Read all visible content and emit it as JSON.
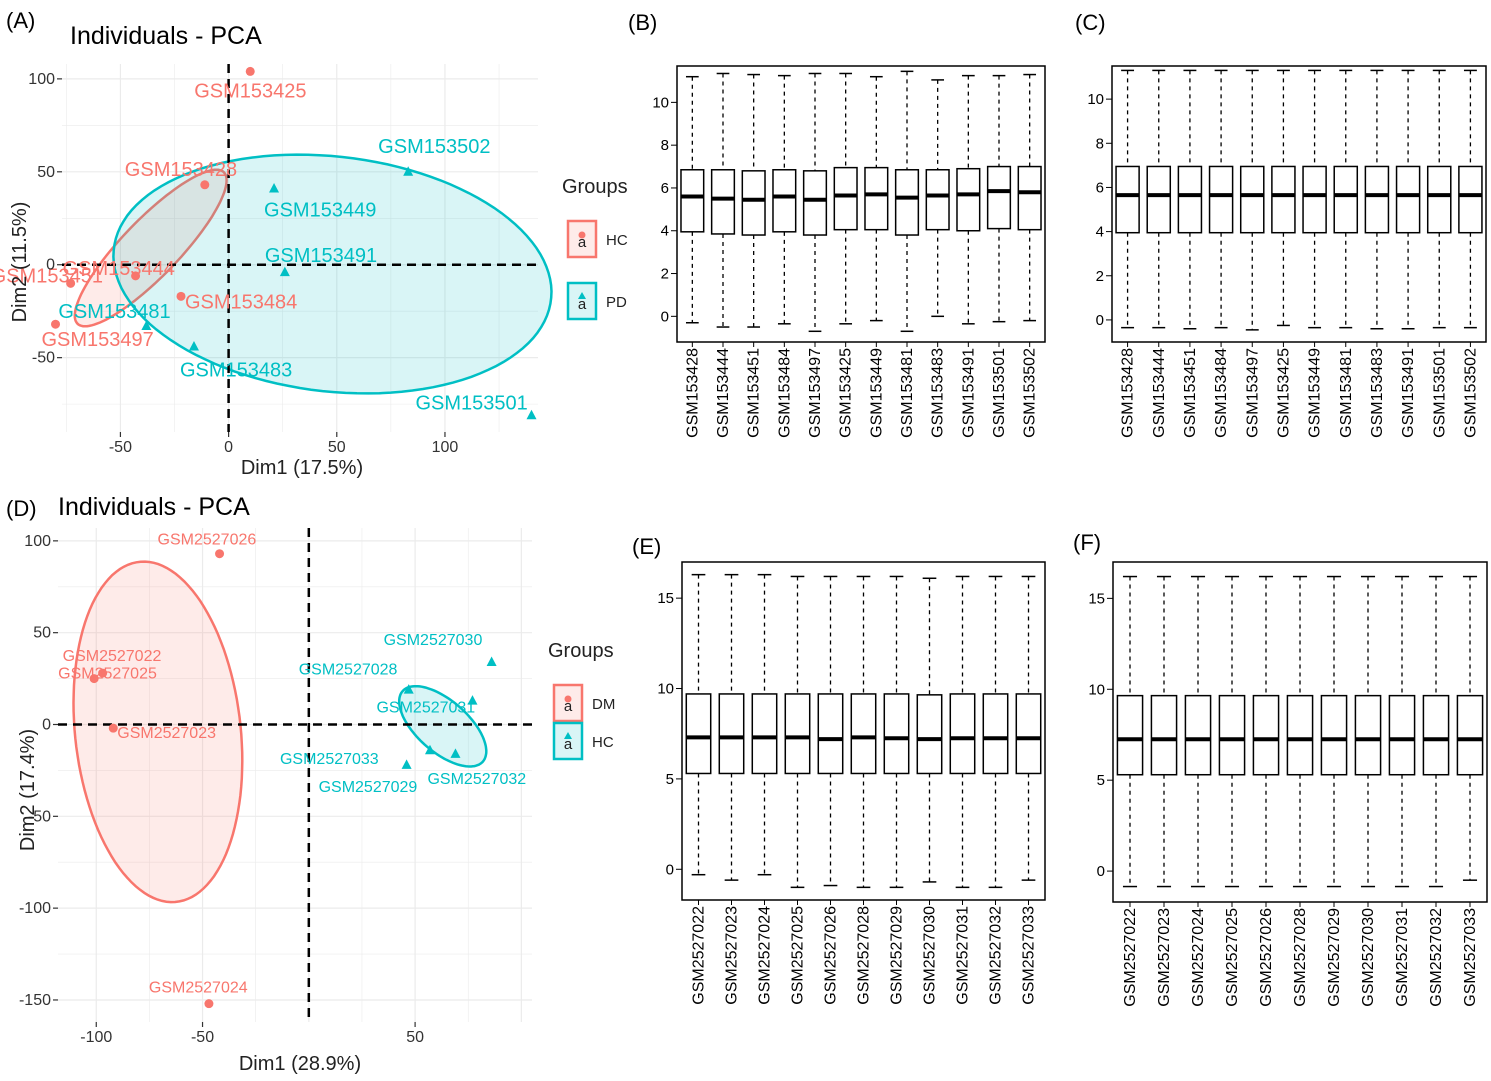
{
  "figure": {
    "labels": [
      "(A)",
      "(B)",
      "(C)",
      "(D)",
      "(E)",
      "(F)"
    ]
  },
  "colors": {
    "group1": "#F8766D",
    "group2": "#00BFC4"
  },
  "chart_data": [
    {
      "id": "A",
      "type": "scatter",
      "title": "Individuals - PCA",
      "xlabel": "Dim1 (17.5%)",
      "ylabel": "Dim2 (11.5%)",
      "xlim": [
        -77,
        143
      ],
      "ylim": [
        -90,
        108
      ],
      "xticks": [
        -50,
        0,
        50,
        100
      ],
      "yticks": [
        -50,
        0,
        50,
        100
      ],
      "grid": true,
      "legend": {
        "title": "Groups",
        "position": "right",
        "entries": [
          "HC",
          "PD"
        ]
      },
      "series": [
        {
          "name": "HC",
          "points": [
            {
              "label": "GSM153425",
              "x": 10,
              "y": 104
            },
            {
              "label": "GSM153428",
              "x": -11,
              "y": 43
            },
            {
              "label": "GSM153444",
              "x": -43,
              "y": -6
            },
            {
              "label": "GSM153451",
              "x": -73,
              "y": -10
            },
            {
              "label": "GSM153484",
              "x": -22,
              "y": -17
            },
            {
              "label": "GSM153497",
              "x": -80,
              "y": -32
            }
          ],
          "ellipse": {
            "cx": -36,
            "cy": 9,
            "rx": 53,
            "ry": 14,
            "angle_deg": 51
          }
        },
        {
          "name": "PD",
          "points": [
            {
              "label": "GSM153502",
              "x": 83,
              "y": 50
            },
            {
              "label": "GSM153449",
              "x": 21,
              "y": 41
            },
            {
              "label": "GSM153491",
              "x": 26,
              "y": -4
            },
            {
              "label": "GSM153481",
              "x": -38,
              "y": -33
            },
            {
              "label": "GSM153483",
              "x": -16,
              "y": -44
            },
            {
              "label": "GSM153501",
              "x": 140,
              "y": -81
            }
          ],
          "ellipse": {
            "cx": 48,
            "cy": -5,
            "rx": 102,
            "ry": 63,
            "angle_deg": -9
          }
        }
      ]
    },
    {
      "id": "B",
      "type": "boxplot",
      "ylim": [
        -1.2,
        11.7
      ],
      "yticks": [
        0,
        2,
        4,
        6,
        8,
        10
      ],
      "categories": [
        "GSM153428",
        "GSM153444",
        "GSM153451",
        "GSM153484",
        "GSM153497",
        "GSM153425",
        "GSM153449",
        "GSM153481",
        "GSM153483",
        "GSM153491",
        "GSM153501",
        "GSM153502"
      ],
      "boxes": [
        {
          "min": -0.3,
          "q1": 3.95,
          "median": 5.6,
          "q3": 6.85,
          "max": 11.2
        },
        {
          "min": -0.5,
          "q1": 3.85,
          "median": 5.5,
          "q3": 6.85,
          "max": 11.35
        },
        {
          "min": -0.5,
          "q1": 3.8,
          "median": 5.45,
          "q3": 6.8,
          "max": 11.3
        },
        {
          "min": -0.35,
          "q1": 3.95,
          "median": 5.6,
          "q3": 6.85,
          "max": 11.25
        },
        {
          "min": -0.7,
          "q1": 3.8,
          "median": 5.45,
          "q3": 6.8,
          "max": 11.35
        },
        {
          "min": -0.35,
          "q1": 4.05,
          "median": 5.65,
          "q3": 6.95,
          "max": 11.35
        },
        {
          "min": -0.2,
          "q1": 4.05,
          "median": 5.7,
          "q3": 6.95,
          "max": 11.2
        },
        {
          "min": -0.7,
          "q1": 3.8,
          "median": 5.55,
          "q3": 6.85,
          "max": 11.45
        },
        {
          "min": 0.0,
          "q1": 4.05,
          "median": 5.65,
          "q3": 6.85,
          "max": 11.05
        },
        {
          "min": -0.35,
          "q1": 4.0,
          "median": 5.7,
          "q3": 6.9,
          "max": 11.25
        },
        {
          "min": -0.25,
          "q1": 4.1,
          "median": 5.85,
          "q3": 7.0,
          "max": 11.25
        },
        {
          "min": -0.2,
          "q1": 4.05,
          "median": 5.8,
          "q3": 7.0,
          "max": 11.3
        }
      ]
    },
    {
      "id": "C",
      "type": "boxplot",
      "ylim": [
        -1.0,
        11.5
      ],
      "yticks": [
        0,
        2,
        4,
        6,
        8,
        10
      ],
      "categories": [
        "GSM153428",
        "GSM153444",
        "GSM153451",
        "GSM153484",
        "GSM153497",
        "GSM153425",
        "GSM153449",
        "GSM153481",
        "GSM153483",
        "GSM153491",
        "GSM153501",
        "GSM153502"
      ],
      "boxes": [
        {
          "min": -0.35,
          "q1": 3.95,
          "median": 5.65,
          "q3": 6.95,
          "max": 11.3
        },
        {
          "min": -0.35,
          "q1": 3.95,
          "median": 5.65,
          "q3": 6.95,
          "max": 11.3
        },
        {
          "min": -0.4,
          "q1": 3.95,
          "median": 5.65,
          "q3": 6.95,
          "max": 11.3
        },
        {
          "min": -0.35,
          "q1": 3.95,
          "median": 5.65,
          "q3": 6.95,
          "max": 11.3
        },
        {
          "min": -0.45,
          "q1": 3.95,
          "median": 5.65,
          "q3": 6.95,
          "max": 11.3
        },
        {
          "min": -0.25,
          "q1": 3.95,
          "median": 5.65,
          "q3": 6.95,
          "max": 11.3
        },
        {
          "min": -0.35,
          "q1": 3.95,
          "median": 5.65,
          "q3": 6.95,
          "max": 11.3
        },
        {
          "min": -0.35,
          "q1": 3.95,
          "median": 5.65,
          "q3": 6.95,
          "max": 11.3
        },
        {
          "min": -0.4,
          "q1": 3.95,
          "median": 5.65,
          "q3": 6.95,
          "max": 11.3
        },
        {
          "min": -0.4,
          "q1": 3.95,
          "median": 5.65,
          "q3": 6.95,
          "max": 11.3
        },
        {
          "min": -0.35,
          "q1": 3.95,
          "median": 5.65,
          "q3": 6.95,
          "max": 11.3
        },
        {
          "min": -0.35,
          "q1": 3.95,
          "median": 5.65,
          "q3": 6.95,
          "max": 11.3
        }
      ]
    },
    {
      "id": "D",
      "type": "scatter",
      "title": "Individuals - PCA",
      "xlabel": "Dim1 (28.9%)",
      "ylabel": "Dim2 (17.4%)",
      "xlim": [
        -118,
        105
      ],
      "ylim": [
        -162,
        107
      ],
      "xticks": [
        -100,
        -50,
        50
      ],
      "yticks": [
        -150,
        -100,
        -50,
        0,
        50,
        100
      ],
      "grid": true,
      "legend": {
        "title": "Groups",
        "position": "right",
        "entries": [
          "DM",
          "HC"
        ]
      },
      "series": [
        {
          "name": "DM",
          "points": [
            {
              "label": "GSM2527026",
              "x": -42,
              "y": 93
            },
            {
              "label": "GSM2527022",
              "x": -97,
              "y": 28
            },
            {
              "label": "GSM2527025",
              "x": -101,
              "y": 25
            },
            {
              "label": "GSM2527023",
              "x": -92,
              "y": -2
            },
            {
              "label": "GSM2527024",
              "x": -47,
              "y": -152
            }
          ],
          "ellipse": {
            "cx": -71,
            "cy": -4,
            "rx": 93,
            "ry": 39,
            "angle_deg": 95
          }
        },
        {
          "name": "HC",
          "points": [
            {
              "label": "GSM2527030",
              "x": 86,
              "y": 34
            },
            {
              "label": "GSM2527028",
              "x": 47,
              "y": 19
            },
            {
              "label": "GSM2527031",
              "x": 77,
              "y": 13
            },
            {
              "label": "GSM2527033",
              "x": 57,
              "y": -14
            },
            {
              "label": "GSM2527032",
              "x": 69,
              "y": -16
            },
            {
              "label": "GSM2527029",
              "x": 46,
              "y": -22
            }
          ],
          "ellipse": {
            "cx": 63,
            "cy": -1,
            "rx": 27,
            "ry": 13,
            "angle_deg": -48
          }
        }
      ]
    },
    {
      "id": "E",
      "type": "boxplot",
      "ylim": [
        -1.7,
        17.0
      ],
      "yticks": [
        0,
        5,
        10,
        15
      ],
      "categories": [
        "GSM2527022",
        "GSM2527023",
        "GSM2527024",
        "GSM2527025",
        "GSM2527026",
        "GSM2527028",
        "GSM2527029",
        "GSM2527030",
        "GSM2527031",
        "GSM2527032",
        "GSM2527033"
      ],
      "boxes": [
        {
          "min": -0.3,
          "q1": 5.3,
          "median": 7.3,
          "q3": 9.7,
          "max": 16.3
        },
        {
          "min": -0.6,
          "q1": 5.3,
          "median": 7.3,
          "q3": 9.7,
          "max": 16.3
        },
        {
          "min": -0.3,
          "q1": 5.3,
          "median": 7.3,
          "q3": 9.7,
          "max": 16.3
        },
        {
          "min": -1.0,
          "q1": 5.3,
          "median": 7.3,
          "q3": 9.7,
          "max": 16.2
        },
        {
          "min": -0.9,
          "q1": 5.3,
          "median": 7.2,
          "q3": 9.7,
          "max": 16.2
        },
        {
          "min": -1.0,
          "q1": 5.3,
          "median": 7.3,
          "q3": 9.7,
          "max": 16.2
        },
        {
          "min": -1.0,
          "q1": 5.3,
          "median": 7.25,
          "q3": 9.7,
          "max": 16.2
        },
        {
          "min": -0.7,
          "q1": 5.3,
          "median": 7.2,
          "q3": 9.65,
          "max": 16.1
        },
        {
          "min": -1.0,
          "q1": 5.3,
          "median": 7.25,
          "q3": 9.7,
          "max": 16.2
        },
        {
          "min": -1.0,
          "q1": 5.3,
          "median": 7.25,
          "q3": 9.7,
          "max": 16.2
        },
        {
          "min": -0.6,
          "q1": 5.3,
          "median": 7.25,
          "q3": 9.7,
          "max": 16.2
        }
      ]
    },
    {
      "id": "F",
      "type": "boxplot",
      "ylim": [
        -1.7,
        17.0
      ],
      "yticks": [
        0,
        5,
        10,
        15
      ],
      "categories": [
        "GSM2527022",
        "GSM2527023",
        "GSM2527024",
        "GSM2527025",
        "GSM2527026",
        "GSM2527028",
        "GSM2527029",
        "GSM2527030",
        "GSM2527031",
        "GSM2527032",
        "GSM2527033"
      ],
      "boxes": [
        {
          "min": -0.85,
          "q1": 5.3,
          "median": 7.25,
          "q3": 9.65,
          "max": 16.2
        },
        {
          "min": -0.85,
          "q1": 5.3,
          "median": 7.25,
          "q3": 9.65,
          "max": 16.2
        },
        {
          "min": -0.85,
          "q1": 5.3,
          "median": 7.25,
          "q3": 9.65,
          "max": 16.2
        },
        {
          "min": -0.85,
          "q1": 5.3,
          "median": 7.25,
          "q3": 9.65,
          "max": 16.2
        },
        {
          "min": -0.85,
          "q1": 5.3,
          "median": 7.25,
          "q3": 9.65,
          "max": 16.2
        },
        {
          "min": -0.85,
          "q1": 5.3,
          "median": 7.25,
          "q3": 9.65,
          "max": 16.2
        },
        {
          "min": -0.85,
          "q1": 5.3,
          "median": 7.25,
          "q3": 9.65,
          "max": 16.2
        },
        {
          "min": -0.85,
          "q1": 5.3,
          "median": 7.25,
          "q3": 9.65,
          "max": 16.2
        },
        {
          "min": -0.85,
          "q1": 5.3,
          "median": 7.25,
          "q3": 9.65,
          "max": 16.2
        },
        {
          "min": -0.85,
          "q1": 5.3,
          "median": 7.25,
          "q3": 9.65,
          "max": 16.2
        },
        {
          "min": -0.5,
          "q1": 5.3,
          "median": 7.25,
          "q3": 9.65,
          "max": 16.2
        }
      ]
    }
  ]
}
